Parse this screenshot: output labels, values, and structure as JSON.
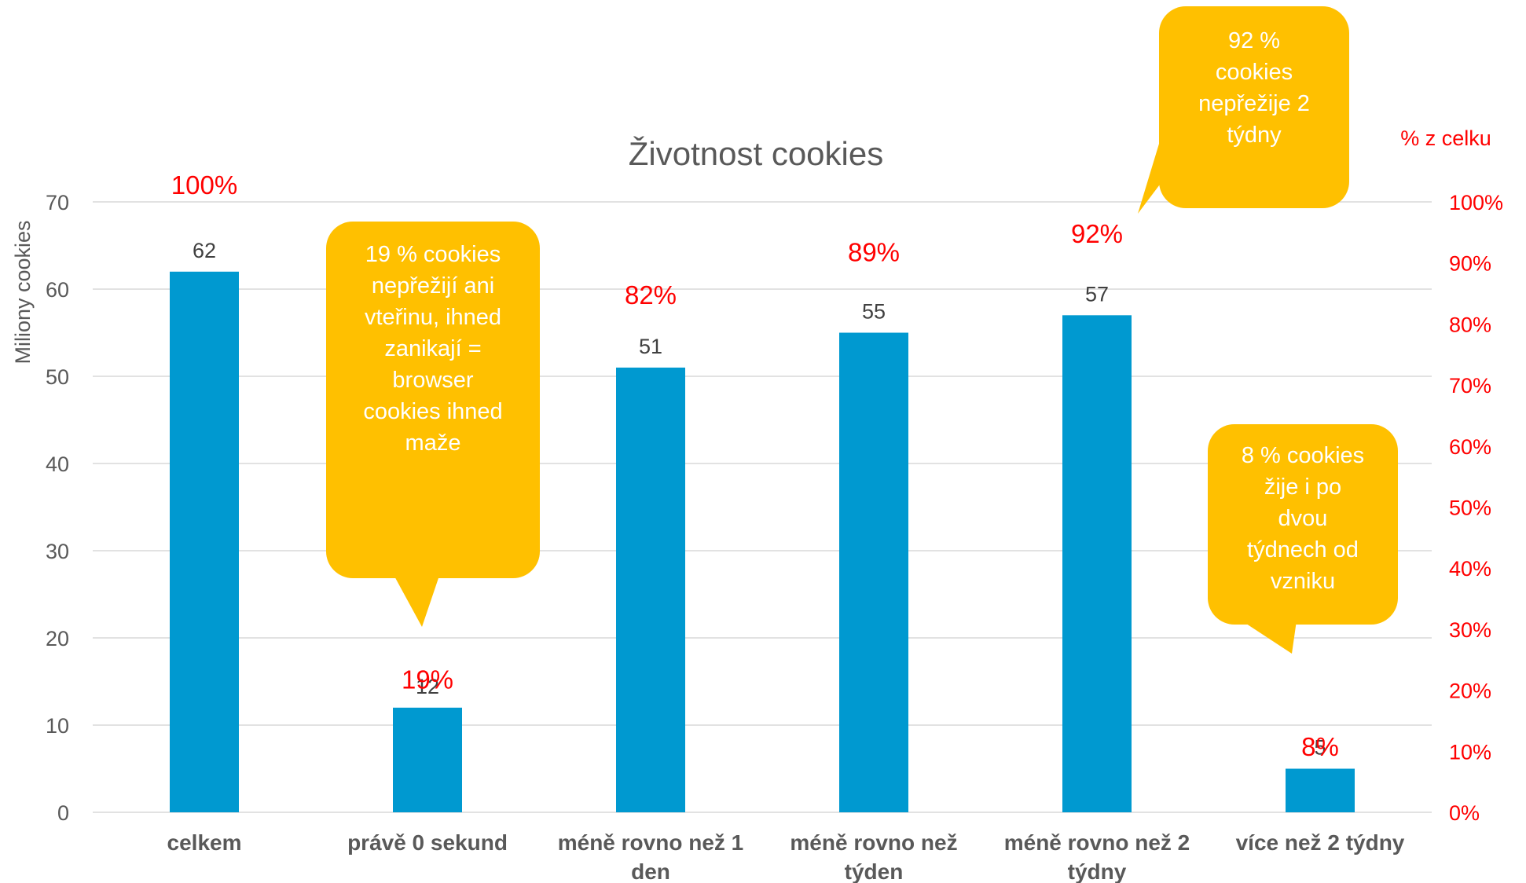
{
  "colors": {
    "bar": "#0099D0",
    "pct": "#FF0000",
    "callout": "#FFC000",
    "grid": "#D9D9D9",
    "text": "#595959"
  },
  "chart_data": {
    "type": "bar",
    "title": "Životnost cookies",
    "ylabel": "Miliony cookies",
    "y2label": "% z celku",
    "categories": [
      "celkem",
      "právě 0 sekund",
      "méně rovno než 1 den",
      "méně rovno než týden",
      "méně rovno než 2 týdny",
      "více než 2 týdny"
    ],
    "series": [
      {
        "values": [
          62,
          12,
          51,
          55,
          57,
          5
        ]
      }
    ],
    "data_labels": [
      "62",
      "12",
      "51",
      "55",
      "57",
      "5"
    ],
    "percent_values": [
      100,
      19,
      82,
      89,
      92,
      8
    ],
    "percent_labels": [
      "100%",
      "19%",
      "82%",
      "89%",
      "92%",
      "8%"
    ],
    "ylim": [
      0,
      70
    ],
    "yticks": [
      0,
      10,
      20,
      30,
      40,
      50,
      60,
      70
    ],
    "y2lim": [
      0,
      100
    ],
    "y2ticks": [
      "0%",
      "10%",
      "20%",
      "30%",
      "40%",
      "50%",
      "60%",
      "70%",
      "80%",
      "90%",
      "100%"
    ],
    "grid": true,
    "legend": "none"
  },
  "callouts": {
    "top": [
      "92 %",
      "cookies",
      "nepřežije 2",
      "týdny"
    ],
    "left": [
      "19 % cookies",
      "nepřežijí ani",
      "vteřinu, ihned",
      "zanikají =",
      "browser",
      "cookies ihned",
      "maže"
    ],
    "right": [
      "8 % cookies",
      "žije i po",
      "dvou",
      "týdnech od",
      "vzniku"
    ]
  }
}
